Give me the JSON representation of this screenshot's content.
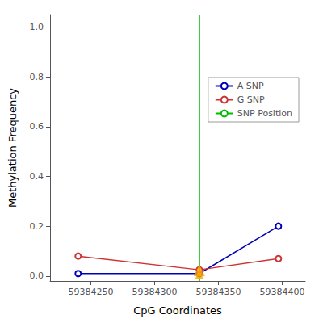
{
  "chart_data": {
    "type": "line",
    "xlabel": "CpG Coordinates",
    "ylabel": "Methylation Frequency",
    "xlim": [
      59384218,
      59384418
    ],
    "xticks": [
      59384250,
      59384300,
      59384350,
      59384400
    ],
    "ylim": [
      -0.02,
      1.05
    ],
    "yticks": [
      {
        "value": 0.0,
        "label": "0.0"
      },
      0.2,
      0.4,
      0.6,
      0.8,
      {
        "value": 1.0,
        "label": "1.0"
      }
    ],
    "grid": false,
    "legend": "right",
    "series": [
      {
        "name": "A SNP",
        "type": "line",
        "color": "#0000bb",
        "marker": "circle",
        "x": [
          59384240,
          59384335,
          59384397
        ],
        "values": [
          0.01,
          0.01,
          0.2
        ]
      },
      {
        "name": "G SNP",
        "type": "line",
        "color": "#cc3333",
        "marker": "circle",
        "x": [
          59384240,
          59384335,
          59384397
        ],
        "values": [
          0.08,
          0.025,
          0.07
        ]
      },
      {
        "name": "SNP Position",
        "type": "vline",
        "color": "#00bb00",
        "x": [
          59384335
        ]
      },
      {
        "type": "scatter",
        "marker": "triangle",
        "color": "#FFA500",
        "x": [
          59384335
        ],
        "values": [
          0.022
        ]
      },
      {
        "type": "scatter",
        "marker": "triangle",
        "color": "#FFA500",
        "x": [
          59384335
        ],
        "values": [
          0.005
        ]
      }
    ]
  }
}
